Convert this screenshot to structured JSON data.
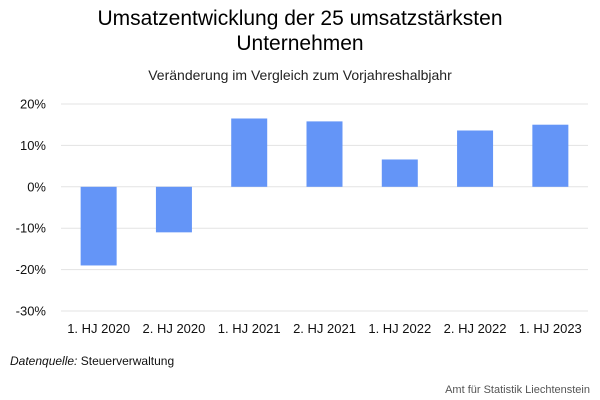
{
  "chart_data": {
    "type": "bar",
    "title_line1": "Umsatzentwicklung der 25 umsatzstärksten",
    "title_line2": "Unternehmen",
    "subtitle": "Veränderung im Vergleich zum Vorjahreshalbjahr",
    "categories": [
      "1. HJ 2020",
      "2. HJ 2020",
      "1. HJ 2021",
      "2. HJ 2021",
      "1. HJ 2022",
      "2. HJ 2022",
      "1. HJ 2023"
    ],
    "values": [
      -19,
      -11,
      16.5,
      15.8,
      6.6,
      13.6,
      15
    ],
    "ylim": [
      -30,
      20
    ],
    "yticks": [
      20,
      10,
      0,
      -10,
      -20,
      -30
    ],
    "ytick_labels": [
      "20%",
      "10%",
      "0%",
      "-10%",
      "-20%",
      "-30%"
    ],
    "grid": true,
    "bar_color": "#6495f7"
  },
  "footer": {
    "source_label": "Datenquelle:",
    "source_value": " Steuerverwaltung",
    "credit": "Amt für Statistik Liechtenstein"
  }
}
